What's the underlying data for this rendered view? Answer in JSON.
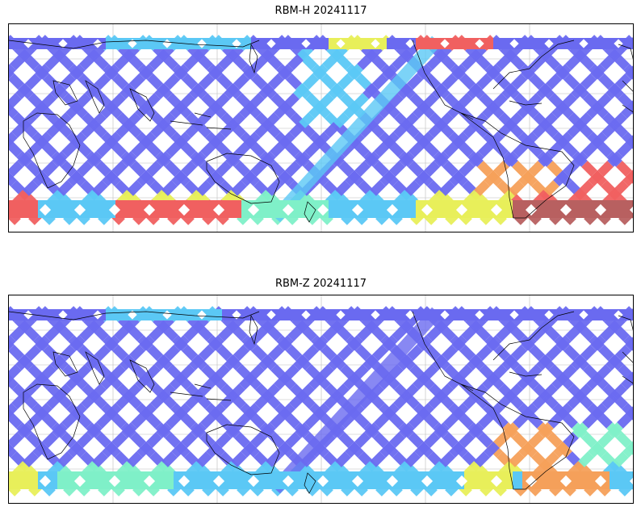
{
  "panels": [
    {
      "title": "RBM-H 20241117",
      "style": "H"
    },
    {
      "title": "RBM-Z 20241117",
      "style": "Z"
    }
  ],
  "colors": {
    "swath_low": "#6a6af0",
    "swath_mid": "#5bc8f5",
    "swath_teal": "#7ff0c8",
    "swath_yellow": "#e8ef5a",
    "swath_orange": "#f5a05a",
    "swath_red": "#f06060",
    "swath_darkred": "#b86060",
    "coastline": "#000000",
    "grid": "#bbbbbb"
  }
}
